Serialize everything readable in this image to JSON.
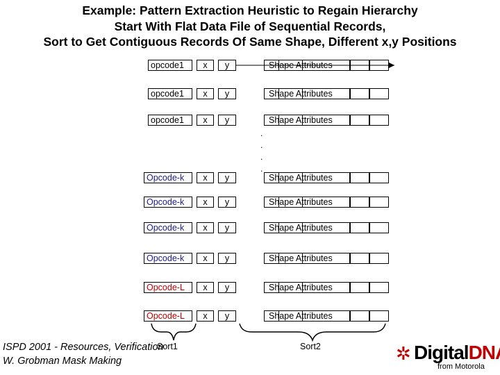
{
  "title": {
    "line1": "Example: Pattern Extraction Heuristic to Regain Hierarchy",
    "line2": "Start With Flat Data File of Sequential Records,",
    "line3": "Sort to Get Contiguous Records Of Same Shape, Different x,y Positions"
  },
  "records": [
    {
      "opcode": "opcode1",
      "x": "x",
      "y": "y",
      "attr": "Shape Attributes",
      "opcode_color": "#000000"
    },
    {
      "opcode": "opcode1",
      "x": "x",
      "y": "y",
      "attr": "Shape Attributes",
      "opcode_color": "#000000"
    },
    {
      "opcode": "opcode1",
      "x": "x",
      "y": "y",
      "attr": "Shape Attributes",
      "opcode_color": "#000000"
    },
    {
      "opcode": "Opcode-k",
      "x": "x",
      "y": "y",
      "attr": "Shape Attributes",
      "opcode_color": "#1a1a8c"
    },
    {
      "opcode": "Opcode-k",
      "x": "x",
      "y": "y",
      "attr": "Shape Attributes",
      "opcode_color": "#1a1a8c"
    },
    {
      "opcode": "Opcode-k",
      "x": "x",
      "y": "y",
      "attr": "Shape Attributes",
      "opcode_color": "#1a1a8c"
    },
    {
      "opcode": "Opcode-k",
      "x": "x",
      "y": "y",
      "attr": "Shape Attributes",
      "opcode_color": "#1a1a8c"
    },
    {
      "opcode": "Opcode-L",
      "x": "x",
      "y": "y",
      "attr": "Shape Attributes",
      "opcode_color": "#c00000"
    },
    {
      "opcode": "Opcode-L",
      "x": "x",
      "y": "y",
      "attr": "Shape Attributes",
      "opcode_color": "#c00000"
    }
  ],
  "ellipsis_dots": [
    ".",
    ".",
    ".",
    "."
  ],
  "sort_labels": {
    "sort1": "Sort1",
    "sort2": "Sort2"
  },
  "footer": {
    "line1": "ISPD 2001 - Resources, Verification",
    "line2": "W. Grobman     Mask Making"
  },
  "logo": {
    "brand_part1": "Digital",
    "brand_part2": "DNA",
    "sub": "from Motorola"
  },
  "colors": {
    "opcode_k": "#1a1a8c",
    "opcode_l": "#c00000",
    "logo_accent": "#c00000"
  }
}
